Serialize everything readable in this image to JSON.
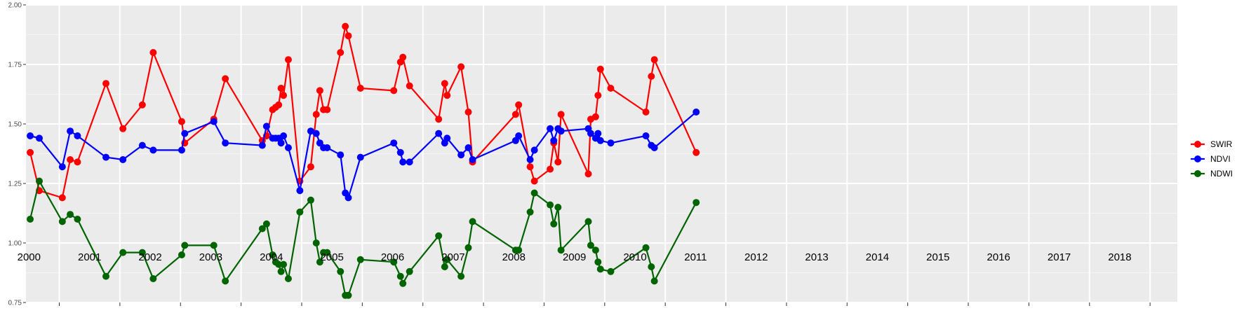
{
  "chart_data": {
    "type": "line",
    "title": "",
    "xlabel": "",
    "ylabel": "",
    "x_range": [
      1999.95,
      2018.95
    ],
    "ylim": [
      0.75,
      2.0
    ],
    "y_ticks": [
      "0.75",
      "1.00",
      "1.25",
      "1.50",
      "1.75",
      "2.00"
    ],
    "year_labels": [
      "2000",
      "2001",
      "2002",
      "2003",
      "2004",
      "2005",
      "2006",
      "2007",
      "2008",
      "2009",
      "2010",
      "2011",
      "2012",
      "2013",
      "2014",
      "2015",
      "2016",
      "2017",
      "2018"
    ],
    "year_dividers": [
      2000.5,
      2001.5,
      2002.5,
      2003.5,
      2004.5,
      2005.5,
      2006.5,
      2007.5,
      2008.5,
      2009.5,
      2010.5,
      2011.5,
      2012.5,
      2013.5,
      2014.5,
      2015.5,
      2016.5,
      2017.5,
      2018.5
    ],
    "grid": true,
    "panel_background": "#ebebeb",
    "legend_position": "right",
    "series": [
      {
        "name": "SWIR",
        "color": "#ff0000",
        "x": [
          2000.02,
          2000.17,
          2000.55,
          2000.68,
          2000.8,
          2001.27,
          2001.55,
          2001.87,
          2002.05,
          2002.52,
          2002.57,
          2003.05,
          2003.24,
          2003.85,
          2003.92,
          2004.02,
          2004.07,
          2004.12,
          2004.16,
          2004.2,
          2004.28,
          2004.47,
          2004.65,
          2004.74,
          2004.8,
          2004.86,
          2004.92,
          2005.14,
          2005.22,
          2005.27,
          2005.47,
          2006.02,
          2006.13,
          2006.17,
          2006.28,
          2006.76,
          2006.86,
          2006.9,
          2007.13,
          2007.25,
          2007.32,
          2008.03,
          2008.08,
          2008.27,
          2008.34,
          2008.6,
          2008.66,
          2008.73,
          2008.78,
          2009.23,
          2009.27,
          2009.35,
          2009.39,
          2009.43,
          2009.6,
          2010.18,
          2010.27,
          2010.32,
          2011.01
        ],
        "y": [
          1.38,
          1.22,
          1.19,
          1.35,
          1.34,
          1.67,
          1.48,
          1.58,
          1.8,
          1.51,
          1.42,
          1.52,
          1.69,
          1.43,
          1.45,
          1.56,
          1.57,
          1.58,
          1.65,
          1.62,
          1.77,
          1.26,
          1.32,
          1.54,
          1.64,
          1.56,
          1.56,
          1.8,
          1.91,
          1.87,
          1.65,
          1.64,
          1.76,
          1.78,
          1.66,
          1.52,
          1.67,
          1.62,
          1.74,
          1.55,
          1.34,
          1.54,
          1.58,
          1.32,
          1.26,
          1.31,
          1.42,
          1.34,
          1.54,
          1.29,
          1.52,
          1.53,
          1.62,
          1.73,
          1.65,
          1.55,
          1.7,
          1.77,
          1.38
        ]
      },
      {
        "name": "NDVI",
        "color": "#0000ff",
        "x": [
          2000.02,
          2000.17,
          2000.55,
          2000.68,
          2000.8,
          2001.27,
          2001.55,
          2001.87,
          2002.05,
          2002.52,
          2002.57,
          2003.05,
          2003.24,
          2003.85,
          2003.92,
          2004.02,
          2004.07,
          2004.12,
          2004.16,
          2004.2,
          2004.28,
          2004.47,
          2004.65,
          2004.74,
          2004.8,
          2004.86,
          2004.92,
          2005.14,
          2005.22,
          2005.27,
          2005.47,
          2006.02,
          2006.13,
          2006.17,
          2006.28,
          2006.76,
          2006.86,
          2006.9,
          2007.13,
          2007.25,
          2007.32,
          2008.03,
          2008.08,
          2008.27,
          2008.34,
          2008.6,
          2008.66,
          2008.73,
          2008.78,
          2009.23,
          2009.27,
          2009.35,
          2009.39,
          2009.43,
          2009.6,
          2010.18,
          2010.27,
          2010.32,
          2011.01
        ],
        "y": [
          1.45,
          1.44,
          1.32,
          1.47,
          1.45,
          1.36,
          1.35,
          1.41,
          1.39,
          1.39,
          1.46,
          1.51,
          1.42,
          1.41,
          1.49,
          1.44,
          1.44,
          1.44,
          1.42,
          1.45,
          1.4,
          1.22,
          1.47,
          1.46,
          1.42,
          1.4,
          1.4,
          1.37,
          1.21,
          1.19,
          1.36,
          1.42,
          1.38,
          1.34,
          1.34,
          1.46,
          1.42,
          1.44,
          1.37,
          1.4,
          1.35,
          1.43,
          1.45,
          1.35,
          1.39,
          1.48,
          1.43,
          1.48,
          1.47,
          1.48,
          1.46,
          1.44,
          1.46,
          1.43,
          1.42,
          1.45,
          1.41,
          1.4,
          1.55
        ]
      },
      {
        "name": "NDWI",
        "color": "#006400",
        "x": [
          2000.02,
          2000.17,
          2000.55,
          2000.68,
          2000.8,
          2001.27,
          2001.55,
          2001.87,
          2002.05,
          2002.52,
          2002.57,
          2003.05,
          2003.24,
          2003.85,
          2003.92,
          2004.02,
          2004.07,
          2004.12,
          2004.16,
          2004.2,
          2004.28,
          2004.47,
          2004.65,
          2004.74,
          2004.8,
          2004.86,
          2004.92,
          2005.14,
          2005.22,
          2005.27,
          2005.47,
          2006.02,
          2006.13,
          2006.17,
          2006.28,
          2006.76,
          2006.86,
          2006.9,
          2007.13,
          2007.25,
          2007.32,
          2008.03,
          2008.08,
          2008.27,
          2008.34,
          2008.6,
          2008.66,
          2008.73,
          2008.78,
          2009.23,
          2009.27,
          2009.35,
          2009.39,
          2009.43,
          2009.6,
          2010.18,
          2010.27,
          2010.32,
          2011.01
        ],
        "y": [
          1.1,
          1.26,
          1.09,
          1.12,
          1.1,
          0.86,
          0.96,
          0.96,
          0.85,
          0.95,
          0.99,
          0.99,
          0.84,
          1.06,
          1.08,
          0.95,
          0.92,
          0.91,
          0.88,
          0.91,
          0.85,
          1.13,
          1.18,
          1.0,
          0.92,
          0.96,
          0.96,
          0.88,
          0.78,
          0.78,
          0.93,
          0.92,
          0.86,
          0.83,
          0.88,
          1.03,
          0.9,
          0.93,
          0.86,
          0.98,
          1.09,
          0.97,
          0.97,
          1.13,
          1.21,
          1.16,
          1.08,
          1.15,
          0.97,
          1.09,
          0.99,
          0.97,
          0.92,
          0.89,
          0.88,
          0.98,
          0.9,
          0.84,
          1.17
        ]
      }
    ]
  }
}
